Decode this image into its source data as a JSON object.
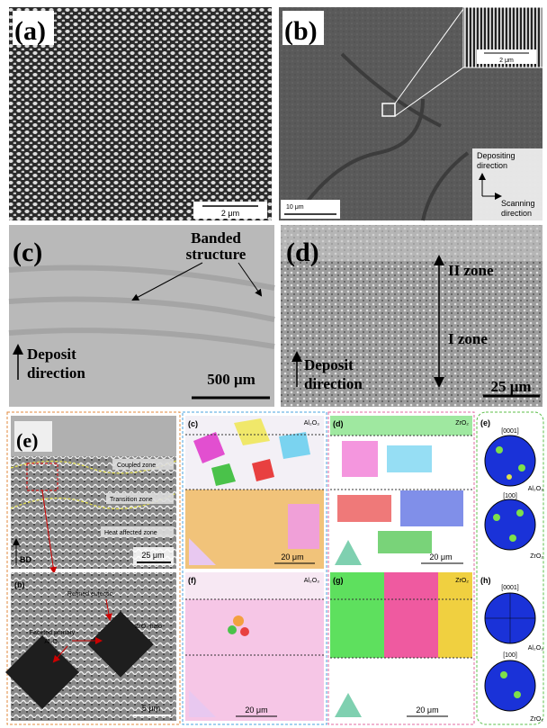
{
  "panels": {
    "a": {
      "label": "(a)",
      "scale_bar": "2 μm"
    },
    "b": {
      "label": "(b)",
      "inset_scale_bar": "2 μm",
      "scale_bar": "10 μm",
      "depositing_direction": [
        "Depositing",
        "direction"
      ],
      "scanning_direction": [
        "Scanning",
        "direction"
      ]
    },
    "c": {
      "label": "(c)",
      "annotation": [
        "Banded",
        "structure"
      ],
      "deposit_direction": [
        "Deposit",
        "direction"
      ],
      "scale_bar": "500 μm"
    },
    "d": {
      "label": "(d)",
      "zone_upper": "II zone",
      "zone_lower": "I zone",
      "deposit_direction": [
        "Deposit",
        "direction"
      ],
      "scale_bar": "25 μm"
    },
    "e": {
      "label": "(e)",
      "coupled_zone": "Coupled zone",
      "transition_zone": "Transition zone",
      "heat_affected_zone": "Heat affected zone",
      "build_direction": "BD",
      "scale_bar": "25 μm"
    },
    "e_b": {
      "label": "(b)",
      "refined_eutectic": "Refined eutectic",
      "faceted_primary": [
        "Faceted primary",
        "Al₂O₃"
      ],
      "halo": "ZrO₂ halo",
      "scale_bar": "5 μm"
    },
    "e_c": {
      "label": "(c)",
      "phase": "Al₂O₃",
      "scale_bar": "20 μm"
    },
    "e_d": {
      "label": "(d)",
      "phase": "ZrO₂",
      "scale_bar": "20 μm"
    },
    "e_f": {
      "label": "(f)",
      "phase": "Al₂O₃",
      "scale_bar": "20 μm"
    },
    "e_g": {
      "label": "(g)",
      "phase": "ZrO₂",
      "scale_bar": "20 μm"
    },
    "e_e": {
      "label": "(e)",
      "direction_1": "[0001]",
      "phase_1": "Al₂O₃",
      "direction_2": "[100]",
      "phase_2": "ZrO₂"
    },
    "e_h": {
      "label": "(h)",
      "direction_1": "[0001]",
      "phase_1": "Al₂O₃",
      "direction_2": "[100]",
      "phase_2": "ZrO₂"
    }
  }
}
